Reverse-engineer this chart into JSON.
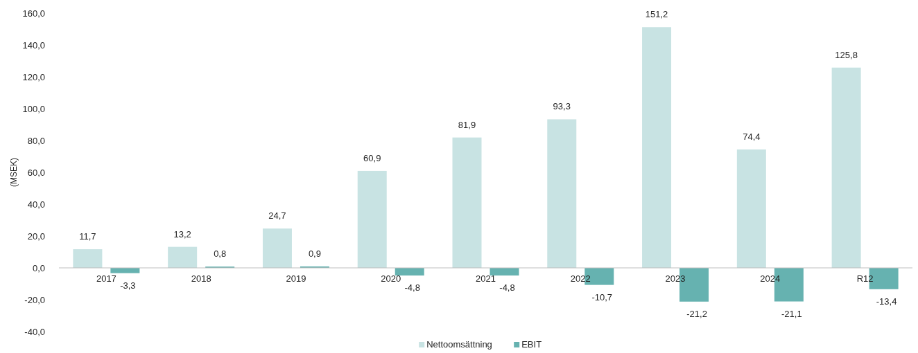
{
  "chart_data": {
    "type": "bar",
    "ylabel": "(MSEK)",
    "categories": [
      "2017",
      "2018",
      "2019",
      "2020",
      "2021",
      "2022",
      "2023",
      "2024",
      "R12"
    ],
    "series": [
      {
        "name": "Nettoomsättning",
        "color": "#c8e3e3",
        "values": [
          11.7,
          13.2,
          24.7,
          60.9,
          81.9,
          93.3,
          151.2,
          74.4,
          125.8
        ],
        "value_labels": [
          "11,7",
          "13,2",
          "24,7",
          "60,9",
          "81,9",
          "93,3",
          "151,2",
          "74,4",
          "125,8"
        ]
      },
      {
        "name": "EBIT",
        "color": "#66b2b0",
        "values": [
          -3.3,
          0.8,
          0.9,
          -4.8,
          -4.8,
          -10.7,
          -21.2,
          -21.1,
          -13.4
        ],
        "value_labels": [
          "-3,3",
          "0,8",
          "0,9",
          "-4,8",
          "-4,8",
          "-10,7",
          "-21,2",
          "-21,1",
          "-13,4"
        ]
      }
    ],
    "ylim": [
      -40,
      160
    ],
    "yticks": [
      {
        "value": -40,
        "label": "-40,0"
      },
      {
        "value": -20,
        "label": "-20,0"
      },
      {
        "value": 0,
        "label": "0,0"
      },
      {
        "value": 20,
        "label": "20,0"
      },
      {
        "value": 40,
        "label": "40,0"
      },
      {
        "value": 60,
        "label": "60,0"
      },
      {
        "value": 80,
        "label": "80,0"
      },
      {
        "value": 100,
        "label": "100,0"
      },
      {
        "value": 120,
        "label": "120,0"
      },
      {
        "value": 140,
        "label": "140,0"
      },
      {
        "value": 160,
        "label": "160,0"
      }
    ],
    "legend": "bottom"
  }
}
